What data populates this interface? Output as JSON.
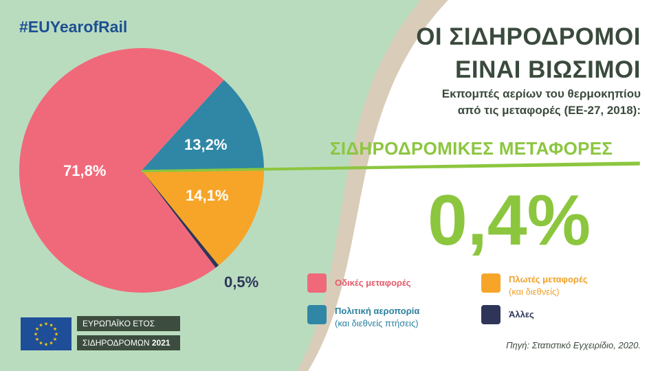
{
  "header": {
    "hashtag": "#EUYearofRail",
    "title_lines": [
      "ΟΙ ΣΙΔΗΡΟΔΡΟΜΟΙ",
      "ΕΙΝΑΙ ΒΙΩΣΙΜΟΙ"
    ],
    "subtitle_lines": [
      "Εκπομπές αερίων του θερμοκηπίου",
      "από τις μεταφορές (ΕΕ-27, 2018):"
    ]
  },
  "highlight": {
    "label": "ΣΙΔΗΡΟΔΡΟΜΙΚΕΣ ΜΕΤΑΦΟΡΕΣ",
    "value": "0,4%",
    "color": "#8cc63f"
  },
  "chart_data": {
    "type": "pie",
    "title": "",
    "slices": [
      {
        "name": "Οδικές μεταφορές",
        "sub": "",
        "value": 71.8,
        "label": "71,8%",
        "color": "#f0697a"
      },
      {
        "name": "Πολιτική αεροπορία",
        "sub": "(και διεθνείς πτήσεις)",
        "value": 13.2,
        "label": "13,2%",
        "color": "#2f87a5"
      },
      {
        "name": "Πλωτές μεταφορές",
        "sub": "(και διεθνείς)",
        "value": 14.1,
        "label": "14,1%",
        "color": "#f6a529"
      },
      {
        "name": "Άλλες",
        "sub": "",
        "value": 0.5,
        "label": "0,5%",
        "color": "#2e3558"
      }
    ],
    "rail_share": {
      "name": "ΣΙΔΗΡΟΔΡΟΜΙΚΕΣ ΜΕΤΑΦΟΡΕΣ",
      "value": 0.4,
      "label": "0,4%"
    }
  },
  "legend_text_colors": [
    "#e55a6c",
    "#2a7f9e",
    "#f0a02a",
    "#2e3558"
  ],
  "source": "Πηγή: Στατιστικό Εγχειρίδιο, 2020.",
  "badge": {
    "line1": "ΕΥΡΩΠΑΪΚΟ ΕΤΟΣ",
    "line2": "ΣΙΔΗΡΟΔΡΟΜΩΝ",
    "year": "2021"
  },
  "colors": {
    "green_bg": "#b9dcbf",
    "white_panel": "#ffffff",
    "beige_band": "#d9ccb9",
    "title": "#3a4a3c",
    "hashtag": "#1d4f91",
    "eu_blue": "#1f4e98",
    "eu_star": "#ffd200"
  }
}
